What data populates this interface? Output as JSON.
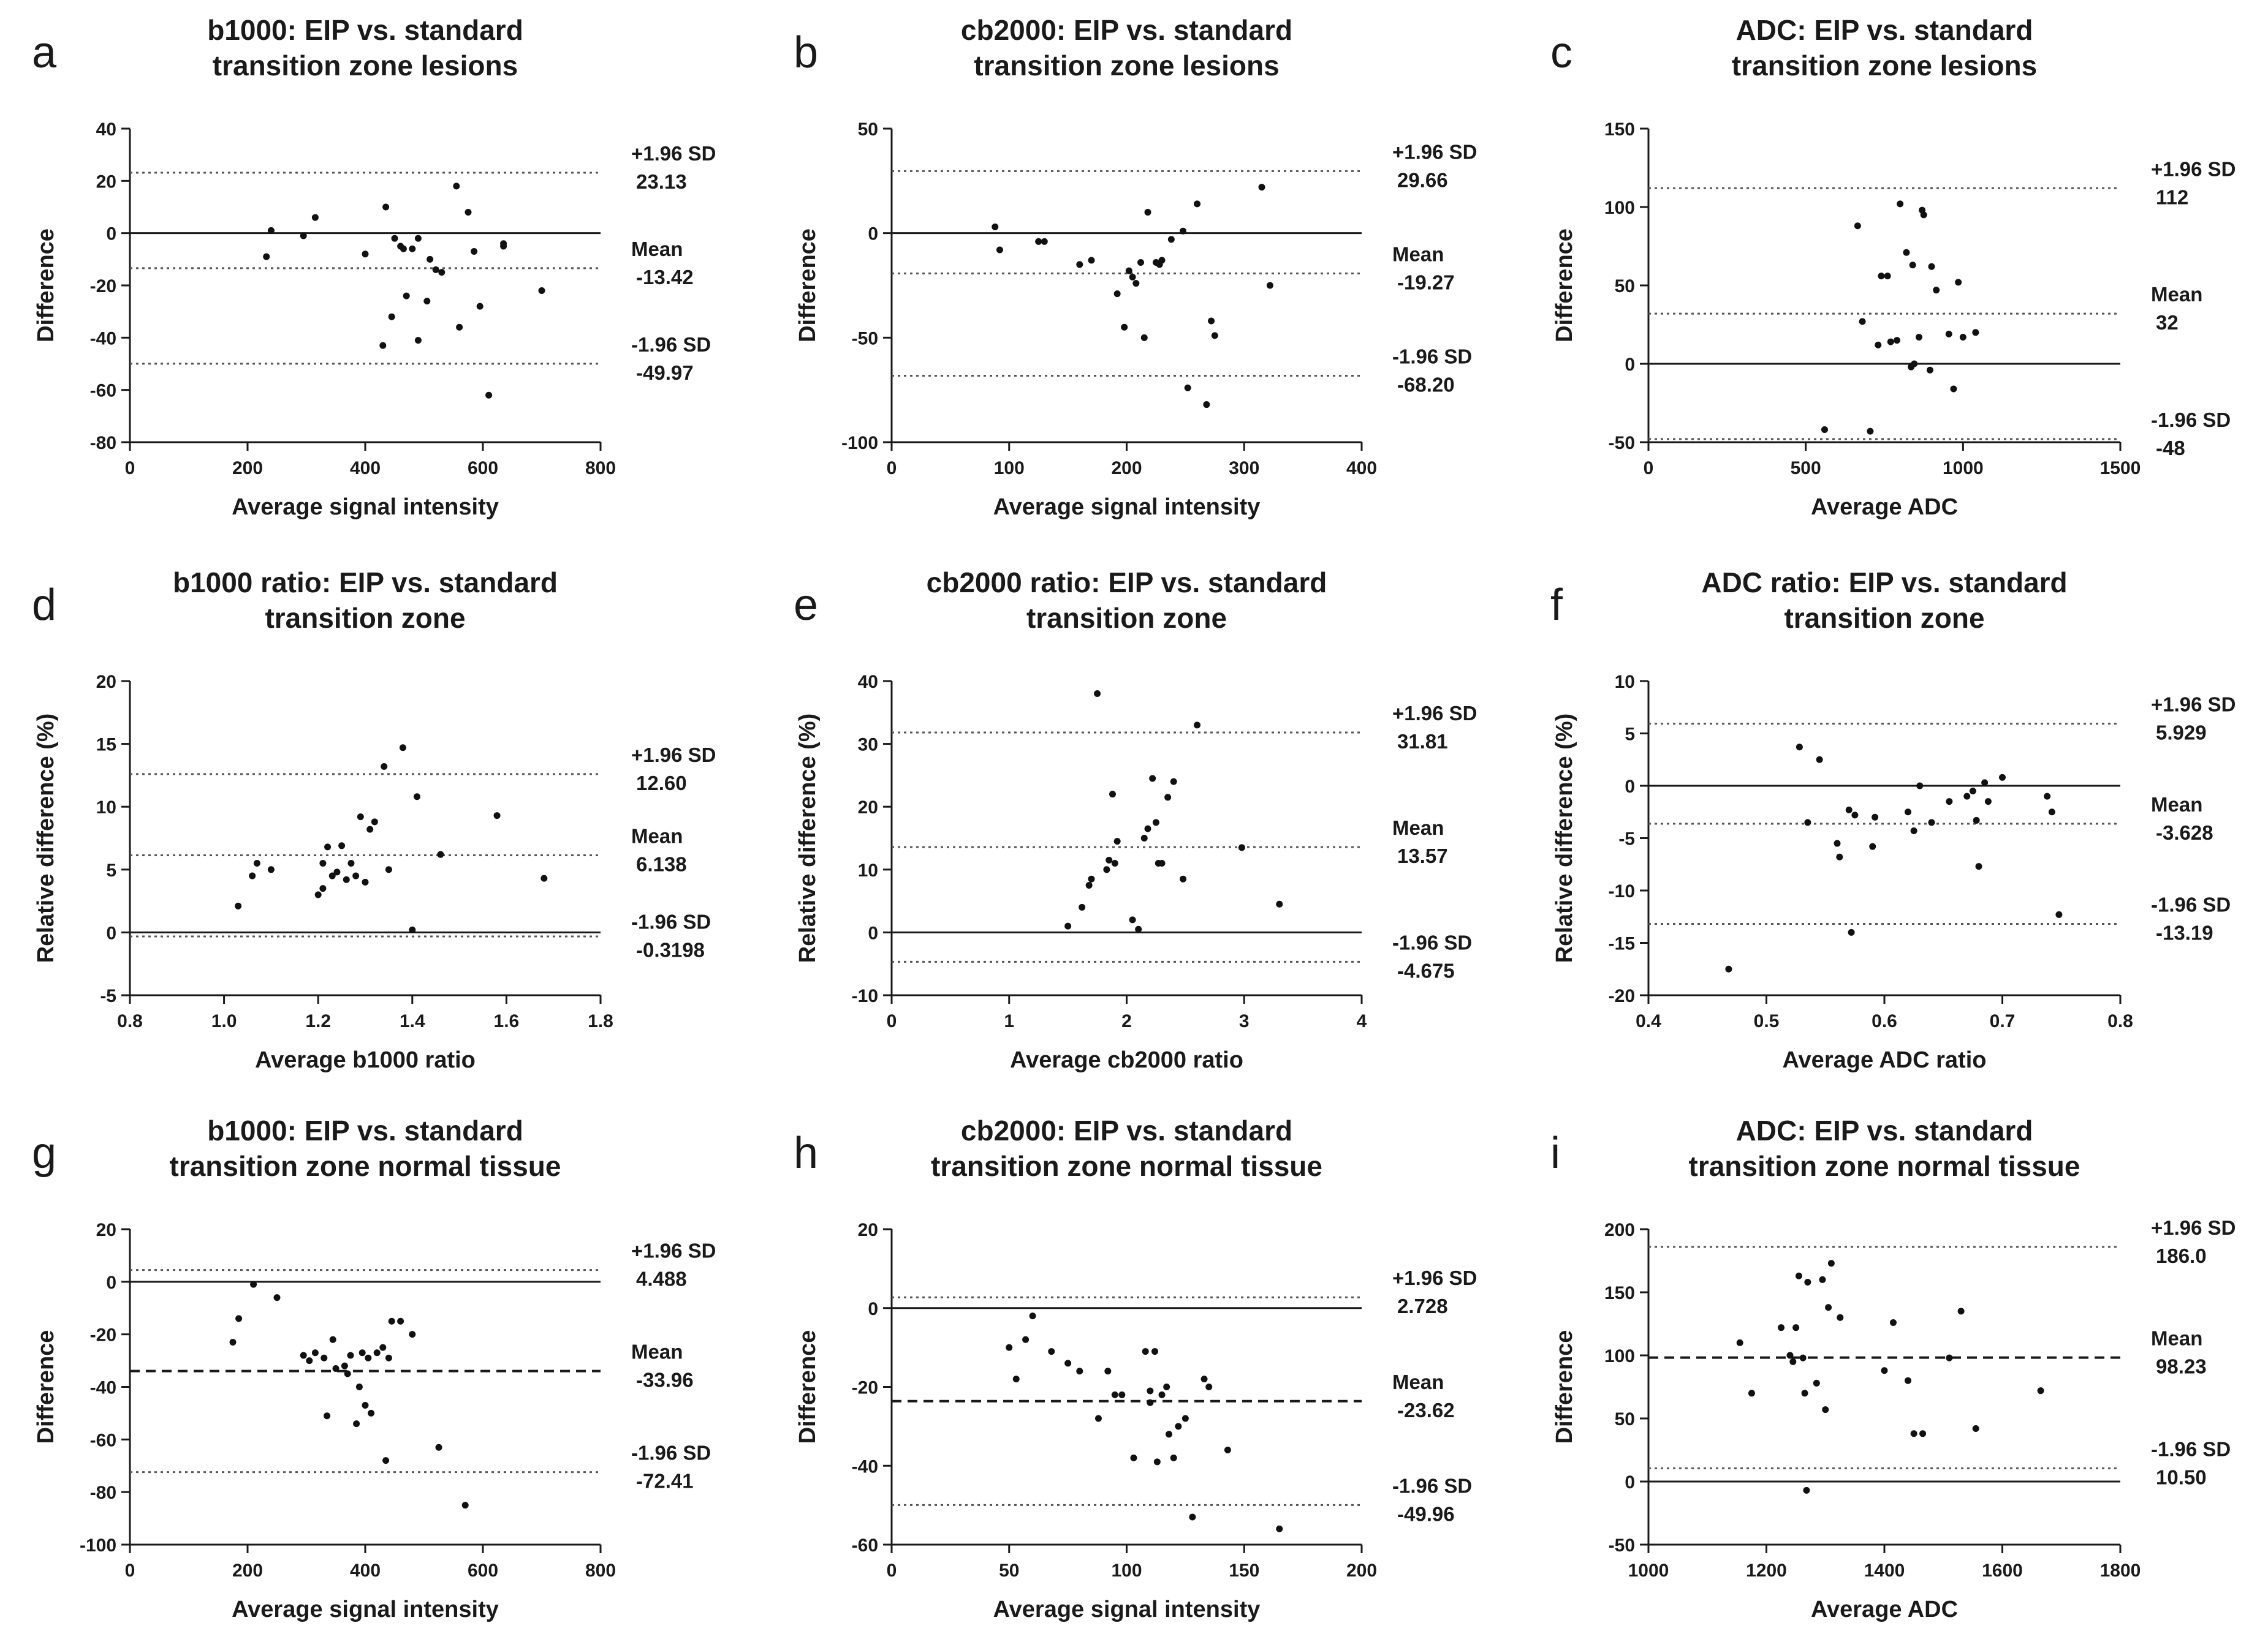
{
  "chart_data": [
    {
      "type": "scatter",
      "panel": "a",
      "title": [
        "b1000: EIP vs. standard",
        "transition zone lesions"
      ],
      "xlabel": "Average signal intensity",
      "ylabel": "Difference",
      "xlim": [
        0,
        800
      ],
      "ylim": [
        -80,
        40
      ],
      "xticks": [
        0,
        200,
        400,
        600,
        800
      ],
      "yticks": [
        -80,
        -60,
        -40,
        -20,
        0,
        20,
        40
      ],
      "mean": -13.42,
      "upper": 23.13,
      "lower": -49.97,
      "mean_style": "dotted",
      "bias_labels": {
        "upper": [
          "+1.96 SD",
          "23.13"
        ],
        "mean": [
          "Mean",
          "-13.42"
        ],
        "lower": [
          "-1.96 SD",
          "-49.97"
        ]
      },
      "points": [
        [
          232,
          -9
        ],
        [
          240,
          1
        ],
        [
          295,
          -1
        ],
        [
          315,
          6
        ],
        [
          400,
          -8
        ],
        [
          435,
          10
        ],
        [
          445,
          -32
        ],
        [
          450,
          -2
        ],
        [
          460,
          -5
        ],
        [
          465,
          -6
        ],
        [
          470,
          -24
        ],
        [
          480,
          -6
        ],
        [
          490,
          -2
        ],
        [
          490,
          -41
        ],
        [
          505,
          -26
        ],
        [
          510,
          -10
        ],
        [
          520,
          -14
        ],
        [
          530,
          -15
        ],
        [
          555,
          18
        ],
        [
          560,
          -36
        ],
        [
          575,
          8
        ],
        [
          585,
          -7
        ],
        [
          595,
          -28
        ],
        [
          610,
          -62
        ],
        [
          635,
          -5
        ],
        [
          635,
          -4
        ],
        [
          700,
          -22
        ],
        [
          430,
          -43
        ]
      ]
    },
    {
      "type": "scatter",
      "panel": "b",
      "title": [
        "cb2000: EIP vs. standard",
        "transition zone lesions"
      ],
      "xlabel": "Average signal intensity",
      "ylabel": "Difference",
      "xlim": [
        0,
        400
      ],
      "ylim": [
        -100,
        50
      ],
      "xticks": [
        0,
        100,
        200,
        300,
        400
      ],
      "yticks": [
        -100,
        -50,
        0,
        50
      ],
      "mean": -19.27,
      "upper": 29.66,
      "lower": -68.2,
      "mean_style": "dotted",
      "bias_labels": {
        "upper": [
          "+1.96 SD",
          "29.66"
        ],
        "mean": [
          "Mean",
          "-19.27"
        ],
        "lower": [
          "-1.96 SD",
          "-68.20"
        ]
      },
      "points": [
        [
          88,
          3
        ],
        [
          92,
          -8
        ],
        [
          125,
          -4
        ],
        [
          130,
          -4
        ],
        [
          160,
          -15
        ],
        [
          170,
          -13
        ],
        [
          192,
          -29
        ],
        [
          198,
          -45
        ],
        [
          202,
          -18
        ],
        [
          205,
          -21
        ],
        [
          208,
          -24
        ],
        [
          212,
          -14
        ],
        [
          215,
          -50
        ],
        [
          218,
          10
        ],
        [
          225,
          -14
        ],
        [
          228,
          -15
        ],
        [
          230,
          -13
        ],
        [
          238,
          -3
        ],
        [
          248,
          1
        ],
        [
          252,
          -74
        ],
        [
          260,
          14
        ],
        [
          268,
          -82
        ],
        [
          272,
          -42
        ],
        [
          275,
          -49
        ],
        [
          315,
          22
        ],
        [
          322,
          -25
        ]
      ]
    },
    {
      "type": "scatter",
      "panel": "c",
      "title": [
        "ADC: EIP vs. standard",
        "transition zone lesions"
      ],
      "xlabel": "Average ADC",
      "ylabel": "Difference",
      "xlim": [
        0,
        1500
      ],
      "ylim": [
        -50,
        150
      ],
      "xticks": [
        0,
        500,
        1000,
        1500
      ],
      "yticks": [
        -50,
        0,
        50,
        100,
        150
      ],
      "mean": 32,
      "upper": 112,
      "lower": -48,
      "mean_style": "dotted",
      "lower_style": "dotted",
      "bias_labels": {
        "upper": [
          "+1.96 SD",
          "112"
        ],
        "mean": [
          "Mean",
          "32"
        ],
        "lower": [
          "-1.96 SD",
          "-48"
        ]
      },
      "points": [
        [
          560,
          -42
        ],
        [
          665,
          88
        ],
        [
          680,
          27
        ],
        [
          705,
          -43
        ],
        [
          730,
          12
        ],
        [
          740,
          56
        ],
        [
          760,
          56
        ],
        [
          770,
          14
        ],
        [
          790,
          15
        ],
        [
          800,
          102
        ],
        [
          820,
          71
        ],
        [
          835,
          -2
        ],
        [
          840,
          63
        ],
        [
          845,
          0
        ],
        [
          860,
          17
        ],
        [
          870,
          98
        ],
        [
          875,
          95
        ],
        [
          895,
          -4
        ],
        [
          900,
          62
        ],
        [
          915,
          47
        ],
        [
          955,
          19
        ],
        [
          970,
          -16
        ],
        [
          985,
          52
        ],
        [
          1000,
          17
        ],
        [
          1040,
          20
        ]
      ]
    },
    {
      "type": "scatter",
      "panel": "d",
      "title": [
        "b1000 ratio: EIP vs. standard",
        "transition zone"
      ],
      "xlabel": "Average b1000 ratio",
      "ylabel": "Relative difference (%)",
      "xlim": [
        0.8,
        1.8
      ],
      "ylim": [
        -5,
        20
      ],
      "xticks": [
        0.8,
        1.0,
        1.2,
        1.4,
        1.6,
        1.8
      ],
      "yticks": [
        -5,
        0,
        5,
        10,
        15,
        20
      ],
      "mean": 6.138,
      "upper": 12.6,
      "lower": -0.3198,
      "mean_style": "dotted",
      "bias_labels": {
        "upper": [
          "+1.96 SD",
          "12.60"
        ],
        "mean": [
          "Mean",
          "6.138"
        ],
        "lower": [
          "-1.96 SD",
          "-0.3198"
        ]
      },
      "points": [
        [
          1.03,
          2.1
        ],
        [
          1.06,
          4.5
        ],
        [
          1.07,
          5.5
        ],
        [
          1.1,
          5
        ],
        [
          1.2,
          3
        ],
        [
          1.21,
          3.5
        ],
        [
          1.21,
          5.5
        ],
        [
          1.22,
          6.8
        ],
        [
          1.23,
          4.5
        ],
        [
          1.24,
          4.8
        ],
        [
          1.25,
          6.9
        ],
        [
          1.26,
          4.2
        ],
        [
          1.27,
          5.5
        ],
        [
          1.28,
          4.5
        ],
        [
          1.29,
          9.2
        ],
        [
          1.3,
          4
        ],
        [
          1.31,
          8.2
        ],
        [
          1.32,
          8.8
        ],
        [
          1.34,
          13.2
        ],
        [
          1.35,
          5
        ],
        [
          1.38,
          14.7
        ],
        [
          1.4,
          0.2
        ],
        [
          1.41,
          10.8
        ],
        [
          1.46,
          6.2
        ],
        [
          1.58,
          9.3
        ],
        [
          1.68,
          4.3
        ]
      ]
    },
    {
      "type": "scatter",
      "panel": "e",
      "title": [
        "cb2000 ratio: EIP vs. standard",
        "transition zone"
      ],
      "xlabel": "Average cb2000 ratio",
      "ylabel": "Relative difference (%)",
      "xlim": [
        0,
        4
      ],
      "ylim": [
        -10,
        40
      ],
      "xticks": [
        0,
        1,
        2,
        3,
        4
      ],
      "yticks": [
        -10,
        0,
        10,
        20,
        30,
        40
      ],
      "mean": 13.57,
      "upper": 31.81,
      "lower": -4.675,
      "mean_style": "dotted",
      "bias_labels": {
        "upper": [
          "+1.96 SD",
          "31.81"
        ],
        "mean": [
          "Mean",
          "13.57"
        ],
        "lower": [
          "-1.96 SD",
          "-4.675"
        ]
      },
      "points": [
        [
          1.5,
          1
        ],
        [
          1.62,
          4
        ],
        [
          1.68,
          7.5
        ],
        [
          1.7,
          8.5
        ],
        [
          1.75,
          38
        ],
        [
          1.83,
          10
        ],
        [
          1.85,
          11.5
        ],
        [
          1.88,
          22
        ],
        [
          1.9,
          11
        ],
        [
          1.92,
          14.5
        ],
        [
          2.05,
          2
        ],
        [
          2.1,
          0.5
        ],
        [
          2.15,
          15
        ],
        [
          2.18,
          16.5
        ],
        [
          2.22,
          24.5
        ],
        [
          2.25,
          17.5
        ],
        [
          2.27,
          11
        ],
        [
          2.3,
          11
        ],
        [
          2.35,
          21.5
        ],
        [
          2.4,
          24
        ],
        [
          2.48,
          8.5
        ],
        [
          2.6,
          33
        ],
        [
          2.98,
          13.5
        ],
        [
          3.3,
          4.5
        ]
      ]
    },
    {
      "type": "scatter",
      "panel": "f",
      "title": [
        "ADC ratio: EIP vs. standard",
        "transition zone"
      ],
      "xlabel": "Average ADC ratio",
      "ylabel": "Relative difference (%)",
      "xlim": [
        0.4,
        0.8
      ],
      "ylim": [
        -20,
        10
      ],
      "xticks": [
        0.4,
        0.5,
        0.6,
        0.7,
        0.8
      ],
      "yticks": [
        -20,
        -15,
        -10,
        -5,
        0,
        5,
        10
      ],
      "mean": -3.628,
      "upper": 5.929,
      "lower": -13.19,
      "mean_style": "dotted",
      "bias_labels": {
        "upper": [
          "+1.96 SD",
          "5.929"
        ],
        "mean": [
          "Mean",
          "-3.628"
        ],
        "lower": [
          "-1.96 SD",
          "-13.19"
        ]
      },
      "points": [
        [
          0.468,
          -17.5
        ],
        [
          0.528,
          3.7
        ],
        [
          0.535,
          -3.5
        ],
        [
          0.545,
          2.5
        ],
        [
          0.56,
          -5.5
        ],
        [
          0.562,
          -6.8
        ],
        [
          0.57,
          -2.3
        ],
        [
          0.572,
          -14
        ],
        [
          0.575,
          -2.8
        ],
        [
          0.59,
          -5.8
        ],
        [
          0.592,
          -3
        ],
        [
          0.62,
          -2.5
        ],
        [
          0.625,
          -4.3
        ],
        [
          0.63,
          0
        ],
        [
          0.64,
          -3.5
        ],
        [
          0.655,
          -1.5
        ],
        [
          0.67,
          -1
        ],
        [
          0.675,
          -0.5
        ],
        [
          0.678,
          -3.3
        ],
        [
          0.68,
          -7.7
        ],
        [
          0.685,
          0.3
        ],
        [
          0.688,
          -1.5
        ],
        [
          0.7,
          0.8
        ],
        [
          0.738,
          -1
        ],
        [
          0.742,
          -2.5
        ],
        [
          0.748,
          -12.3
        ]
      ]
    },
    {
      "type": "scatter",
      "panel": "g",
      "title": [
        "b1000: EIP vs. standard",
        "transition zone normal tissue"
      ],
      "xlabel": "Average signal intensity",
      "ylabel": "Difference",
      "xlim": [
        0,
        800
      ],
      "ylim": [
        -100,
        20
      ],
      "xticks": [
        0,
        200,
        400,
        600,
        800
      ],
      "yticks": [
        -100,
        -80,
        -60,
        -40,
        -20,
        0,
        20
      ],
      "mean": -33.96,
      "upper": 4.488,
      "lower": -72.41,
      "mean_style": "dashed",
      "bias_labels": {
        "upper": [
          "+1.96 SD",
          "4.488"
        ],
        "mean": [
          "Mean",
          "-33.96"
        ],
        "lower": [
          "-1.96 SD",
          "-72.41"
        ]
      },
      "points": [
        [
          175,
          -23
        ],
        [
          185,
          -14
        ],
        [
          210,
          -1
        ],
        [
          250,
          -6
        ],
        [
          295,
          -28
        ],
        [
          305,
          -30
        ],
        [
          315,
          -27
        ],
        [
          330,
          -29
        ],
        [
          335,
          -51
        ],
        [
          345,
          -22
        ],
        [
          350,
          -33
        ],
        [
          365,
          -32
        ],
        [
          370,
          -35
        ],
        [
          375,
          -28
        ],
        [
          385,
          -54
        ],
        [
          390,
          -40
        ],
        [
          395,
          -27
        ],
        [
          400,
          -47
        ],
        [
          405,
          -29
        ],
        [
          410,
          -50
        ],
        [
          420,
          -27
        ],
        [
          430,
          -25
        ],
        [
          435,
          -68
        ],
        [
          440,
          -29
        ],
        [
          445,
          -15
        ],
        [
          460,
          -15
        ],
        [
          480,
          -20
        ],
        [
          525,
          -63
        ],
        [
          570,
          -85
        ]
      ]
    },
    {
      "type": "scatter",
      "panel": "h",
      "title": [
        "cb2000: EIP vs. standard",
        "transition zone normal tissue"
      ],
      "xlabel": "Average signal intensity",
      "ylabel": "Difference",
      "xlim": [
        0,
        200
      ],
      "ylim": [
        -60,
        20
      ],
      "xticks": [
        0,
        50,
        100,
        150,
        200
      ],
      "yticks": [
        -60,
        -40,
        -20,
        0,
        20
      ],
      "mean": -23.62,
      "upper": 2.728,
      "lower": -49.96,
      "mean_style": "dashed",
      "bias_labels": {
        "upper": [
          "+1.96 SD",
          "2.728"
        ],
        "mean": [
          "Mean",
          "-23.62"
        ],
        "lower": [
          "-1.96 SD",
          "-49.96"
        ]
      },
      "points": [
        [
          50,
          -10
        ],
        [
          53,
          -18
        ],
        [
          57,
          -8
        ],
        [
          60,
          -2
        ],
        [
          68,
          -11
        ],
        [
          75,
          -14
        ],
        [
          80,
          -16
        ],
        [
          88,
          -28
        ],
        [
          92,
          -16
        ],
        [
          95,
          -22
        ],
        [
          98,
          -22
        ],
        [
          103,
          -38
        ],
        [
          108,
          -11
        ],
        [
          110,
          -24
        ],
        [
          110,
          -21
        ],
        [
          112,
          -11
        ],
        [
          113,
          -39
        ],
        [
          115,
          -22
        ],
        [
          117,
          -20
        ],
        [
          120,
          -38
        ],
        [
          122,
          -30
        ],
        [
          125,
          -28
        ],
        [
          128,
          -53
        ],
        [
          133,
          -18
        ],
        [
          135,
          -20
        ],
        [
          143,
          -36
        ],
        [
          165,
          -56
        ],
        [
          118,
          -32
        ]
      ]
    },
    {
      "type": "scatter",
      "panel": "i",
      "title": [
        "ADC: EIP vs. standard",
        "transition zone normal tissue"
      ],
      "xlabel": "Average ADC",
      "ylabel": "Difference",
      "xlim": [
        1000,
        1800
      ],
      "ylim": [
        -50,
        200
      ],
      "xticks": [
        1000,
        1200,
        1400,
        1600,
        1800
      ],
      "yticks": [
        -50,
        0,
        50,
        100,
        150,
        200
      ],
      "mean": 98.23,
      "upper": 186.0,
      "lower": 10.5,
      "mean_style": "dashed",
      "bias_labels": {
        "upper": [
          "+1.96 SD",
          "186.0"
        ],
        "mean": [
          "Mean",
          "98.23"
        ],
        "lower": [
          "-1.96 SD",
          "10.50"
        ]
      },
      "points": [
        [
          1155,
          110
        ],
        [
          1175,
          70
        ],
        [
          1225,
          122
        ],
        [
          1240,
          100
        ],
        [
          1245,
          95
        ],
        [
          1250,
          122
        ],
        [
          1255,
          163
        ],
        [
          1262,
          98
        ],
        [
          1265,
          70
        ],
        [
          1268,
          -7
        ],
        [
          1270,
          158
        ],
        [
          1285,
          78
        ],
        [
          1295,
          160
        ],
        [
          1300,
          57
        ],
        [
          1305,
          138
        ],
        [
          1310,
          173
        ],
        [
          1325,
          130
        ],
        [
          1400,
          88
        ],
        [
          1415,
          126
        ],
        [
          1440,
          80
        ],
        [
          1450,
          38
        ],
        [
          1465,
          38
        ],
        [
          1510,
          98
        ],
        [
          1530,
          135
        ],
        [
          1555,
          42
        ],
        [
          1665,
          72
        ]
      ]
    }
  ]
}
